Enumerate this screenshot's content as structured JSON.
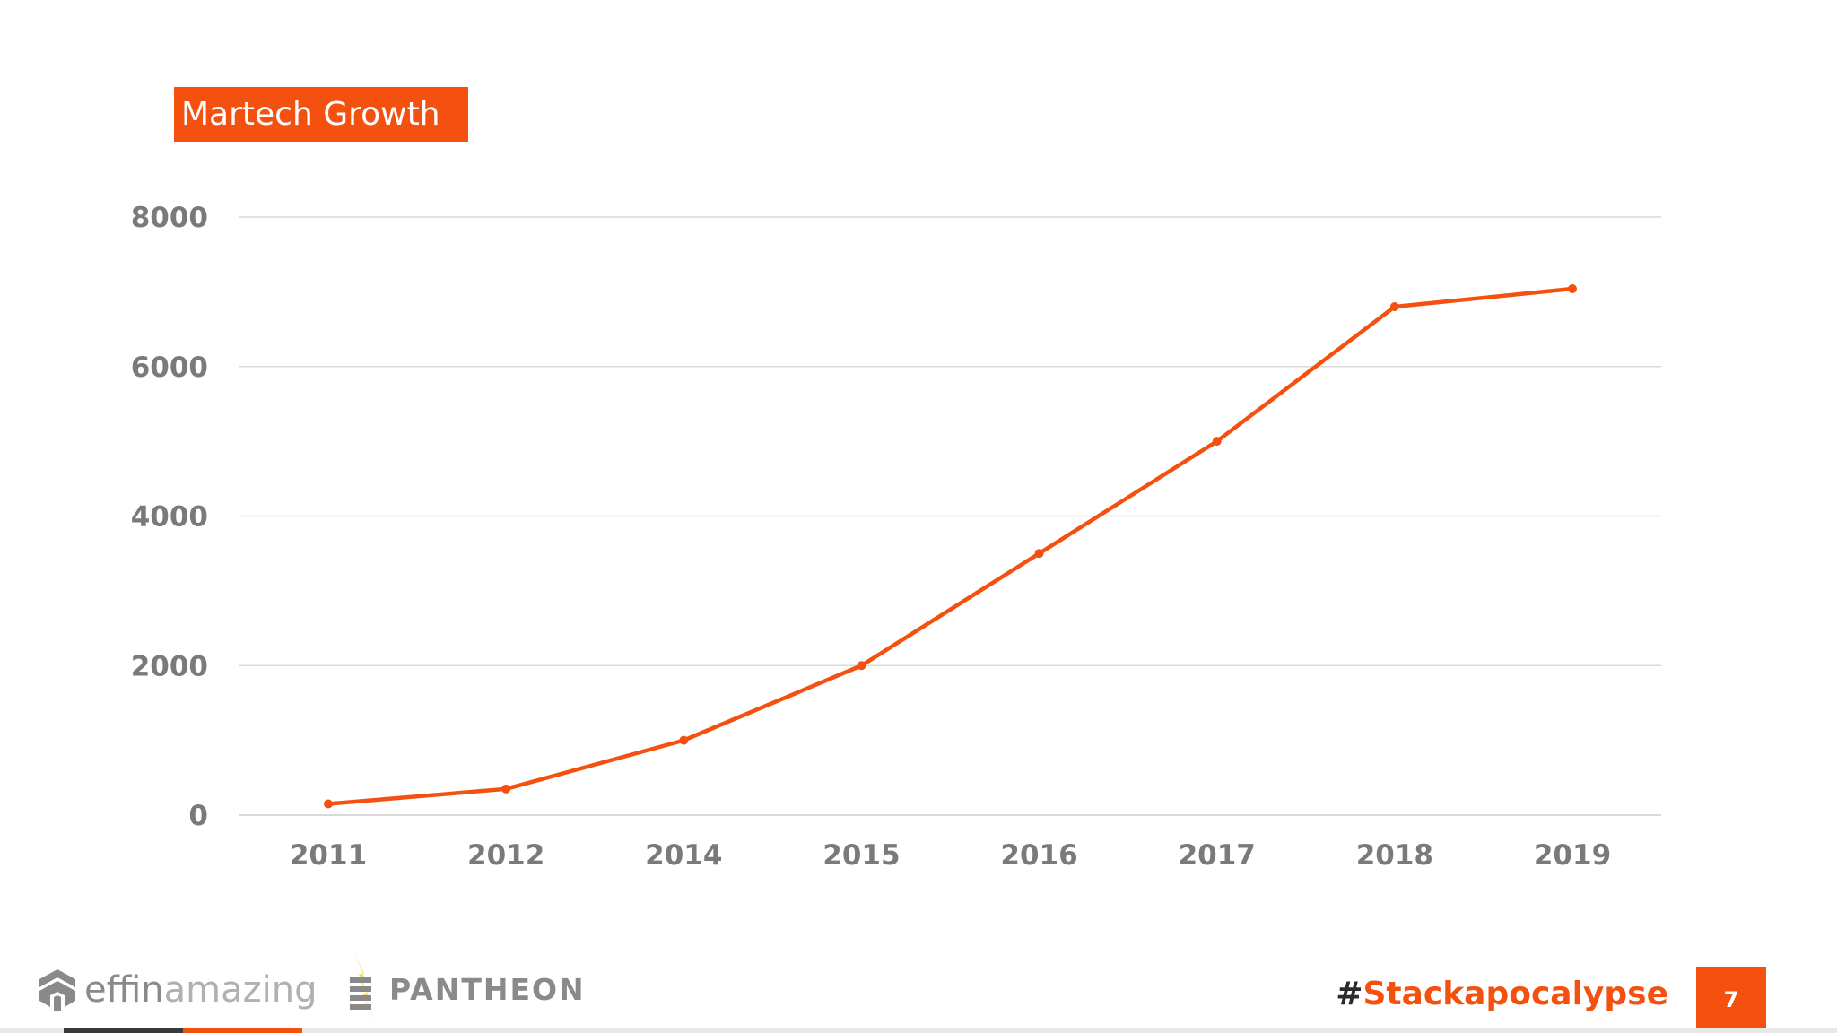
{
  "title": "Martech Growth",
  "chart_data": {
    "type": "line",
    "title": "Martech Growth",
    "categories": [
      "2011",
      "2012",
      "2014",
      "2015",
      "2016",
      "2017",
      "2018",
      "2019"
    ],
    "series": [
      {
        "values": [
          150,
          350,
          1000,
          2000,
          3500,
          5000,
          6800,
          7040
        ]
      }
    ],
    "yticks": [
      "0",
      "2000",
      "4000",
      "6000",
      "8000"
    ],
    "ylim": [
      0,
      8000
    ],
    "grid": true,
    "legend": "none",
    "line_color": "#f4500f",
    "grid_color": "#d9d9d9"
  },
  "footer": {
    "brand1_part1": "effin",
    "brand1_part2": "amazing",
    "brand2": "PANTHEON",
    "hashtag_symbol": "#",
    "hashtag_text": "Stackapocalypse",
    "page_number": "7"
  },
  "colors": {
    "accent": "#f4500f",
    "text_gray": "#7a7a7a"
  }
}
